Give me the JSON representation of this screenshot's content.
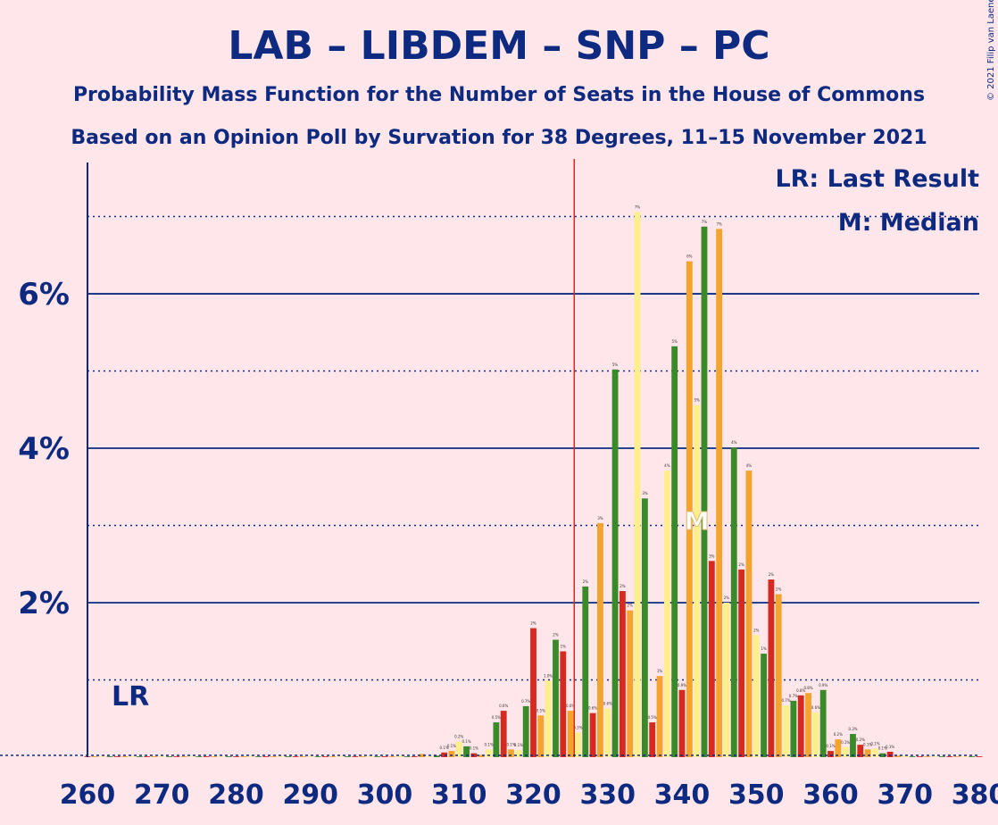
{
  "chart_data": {
    "type": "bar",
    "title": "LAB – LIBDEM – SNP – PC",
    "subtitle1": "Probability Mass Function for the Number of Seats in the House of Commons",
    "subtitle2": "Based on an Opinion Poll by Survation for 38 Degrees, 11–15 November 2021",
    "copyright": "© 2021 Filip van Laenen",
    "legend_lr": "LR: Last Result",
    "legend_median": "M: Median",
    "lr_marker_label": "LR",
    "median_marker_label": "M",
    "last_result_seat": 326,
    "median_seat": 342,
    "x_ticks": [
      "260",
      "270",
      "280",
      "290",
      "300",
      "310",
      "320",
      "330",
      "340",
      "350",
      "360",
      "370",
      "380"
    ],
    "y_ticks": [
      {
        "label": "2%",
        "value": 2
      },
      {
        "label": "4%",
        "value": 4
      },
      {
        "label": "6%",
        "value": 6
      }
    ],
    "y_dotted": [
      1,
      3,
      5,
      7
    ],
    "xlim": [
      260,
      380
    ],
    "ylim": [
      0,
      7.7
    ],
    "colors": {
      "red": "#d42a1f",
      "orange": "#f4a32c",
      "yellow": "#ffef8a",
      "green": "#3a8a2a",
      "axis": "#0d2a80",
      "lr_line": "#d42a1f"
    },
    "seats": [
      {
        "seat": 260,
        "value": 0.01
      },
      {
        "seat": 261,
        "value": 0.01
      },
      {
        "seat": 262,
        "value": 0.01
      },
      {
        "seat": 263,
        "value": 0.01
      },
      {
        "seat": 264,
        "value": 0.01
      },
      {
        "seat": 265,
        "value": 0.01
      },
      {
        "seat": 266,
        "value": 0.01
      },
      {
        "seat": 267,
        "value": 0.01
      },
      {
        "seat": 268,
        "value": 0.01
      },
      {
        "seat": 269,
        "value": 0.01
      },
      {
        "seat": 270,
        "value": 0.01
      },
      {
        "seat": 271,
        "value": 0.01
      },
      {
        "seat": 272,
        "value": 0.01
      },
      {
        "seat": 273,
        "value": 0.01
      },
      {
        "seat": 274,
        "value": 0.01
      },
      {
        "seat": 275,
        "value": 0.01
      },
      {
        "seat": 276,
        "value": 0.01
      },
      {
        "seat": 277,
        "value": 0.01
      },
      {
        "seat": 278,
        "value": 0.01
      },
      {
        "seat": 279,
        "value": 0.01
      },
      {
        "seat": 280,
        "value": 0.01
      },
      {
        "seat": 281,
        "value": 0.01
      },
      {
        "seat": 282,
        "value": 0.01
      },
      {
        "seat": 283,
        "value": 0.01
      },
      {
        "seat": 284,
        "value": 0.01
      },
      {
        "seat": 285,
        "value": 0.01
      },
      {
        "seat": 286,
        "value": 0.01
      },
      {
        "seat": 287,
        "value": 0.01
      },
      {
        "seat": 288,
        "value": 0.01
      },
      {
        "seat": 289,
        "value": 0.01
      },
      {
        "seat": 290,
        "value": 0.01
      },
      {
        "seat": 291,
        "value": 0.01
      },
      {
        "seat": 292,
        "value": 0.01
      },
      {
        "seat": 293,
        "value": 0.01
      },
      {
        "seat": 294,
        "value": 0.01
      },
      {
        "seat": 295,
        "value": 0.01
      },
      {
        "seat": 296,
        "value": 0.01
      },
      {
        "seat": 297,
        "value": 0.01
      },
      {
        "seat": 298,
        "value": 0.01
      },
      {
        "seat": 299,
        "value": 0.01
      },
      {
        "seat": 300,
        "value": 0.01
      },
      {
        "seat": 301,
        "value": 0.01
      },
      {
        "seat": 302,
        "value": 0.02
      },
      {
        "seat": 303,
        "value": 0.01
      },
      {
        "seat": 304,
        "value": 0.01
      },
      {
        "seat": 305,
        "value": 0.04
      },
      {
        "seat": 306,
        "value": 0.01
      },
      {
        "seat": 307,
        "value": 0.02
      },
      {
        "seat": 308,
        "value": 0.06
      },
      {
        "seat": 309,
        "value": 0.08
      },
      {
        "seat": 310,
        "value": 0.2
      },
      {
        "seat": 311,
        "value": 0.14
      },
      {
        "seat": 312,
        "value": 0.05
      },
      {
        "seat": 313,
        "value": 0.03
      },
      {
        "seat": 314,
        "value": 0.1
      },
      {
        "seat": 315,
        "value": 0.45
      },
      {
        "seat": 316,
        "value": 0.6
      },
      {
        "seat": 317,
        "value": 0.1
      },
      {
        "seat": 318,
        "value": 0.09
      },
      {
        "seat": 319,
        "value": 0.66
      },
      {
        "seat": 320,
        "value": 1.67
      },
      {
        "seat": 321,
        "value": 0.54
      },
      {
        "seat": 322,
        "value": 0.99
      },
      {
        "seat": 323,
        "value": 1.52
      },
      {
        "seat": 324,
        "value": 1.37
      },
      {
        "seat": 325,
        "value": 0.6
      },
      {
        "seat": 326,
        "value": 0.32
      },
      {
        "seat": 327,
        "value": 2.21
      },
      {
        "seat": 328,
        "value": 0.57
      },
      {
        "seat": 329,
        "value": 3.03
      },
      {
        "seat": 330,
        "value": 0.63
      },
      {
        "seat": 331,
        "value": 5.02
      },
      {
        "seat": 332,
        "value": 2.15
      },
      {
        "seat": 333,
        "value": 1.9
      },
      {
        "seat": 334,
        "value": 7.06
      },
      {
        "seat": 335,
        "value": 3.35
      },
      {
        "seat": 336,
        "value": 0.45
      },
      {
        "seat": 337,
        "value": 1.05
      },
      {
        "seat": 338,
        "value": 3.71
      },
      {
        "seat": 339,
        "value": 5.32
      },
      {
        "seat": 340,
        "value": 0.87
      },
      {
        "seat": 341,
        "value": 6.42
      },
      {
        "seat": 342,
        "value": 4.56
      },
      {
        "seat": 343,
        "value": 6.87
      },
      {
        "seat": 344,
        "value": 2.54
      },
      {
        "seat": 345,
        "value": 6.84
      },
      {
        "seat": 346,
        "value": 2.0
      },
      {
        "seat": 347,
        "value": 4.01
      },
      {
        "seat": 348,
        "value": 2.43
      },
      {
        "seat": 349,
        "value": 3.71
      },
      {
        "seat": 350,
        "value": 1.58
      },
      {
        "seat": 351,
        "value": 1.34
      },
      {
        "seat": 352,
        "value": 2.3
      },
      {
        "seat": 353,
        "value": 2.11
      },
      {
        "seat": 354,
        "value": 0.67
      },
      {
        "seat": 355,
        "value": 0.73
      },
      {
        "seat": 356,
        "value": 0.8
      },
      {
        "seat": 357,
        "value": 0.83
      },
      {
        "seat": 358,
        "value": 0.58
      },
      {
        "seat": 359,
        "value": 0.87
      },
      {
        "seat": 360,
        "value": 0.08
      },
      {
        "seat": 361,
        "value": 0.23
      },
      {
        "seat": 362,
        "value": 0.13
      },
      {
        "seat": 363,
        "value": 0.3
      },
      {
        "seat": 364,
        "value": 0.16
      },
      {
        "seat": 365,
        "value": 0.1
      },
      {
        "seat": 366,
        "value": 0.11
      },
      {
        "seat": 367,
        "value": 0.05
      },
      {
        "seat": 368,
        "value": 0.07
      },
      {
        "seat": 369,
        "value": 0.02
      },
      {
        "seat": 370,
        "value": 0.02
      },
      {
        "seat": 371,
        "value": 0.01
      },
      {
        "seat": 372,
        "value": 0.01
      },
      {
        "seat": 373,
        "value": 0.01
      },
      {
        "seat": 374,
        "value": 0.01
      },
      {
        "seat": 375,
        "value": 0.01
      },
      {
        "seat": 376,
        "value": 0.01
      },
      {
        "seat": 377,
        "value": 0.01
      },
      {
        "seat": 378,
        "value": 0.01
      },
      {
        "seat": 379,
        "value": 0.01
      },
      {
        "seat": 380,
        "value": 0.01
      }
    ]
  }
}
